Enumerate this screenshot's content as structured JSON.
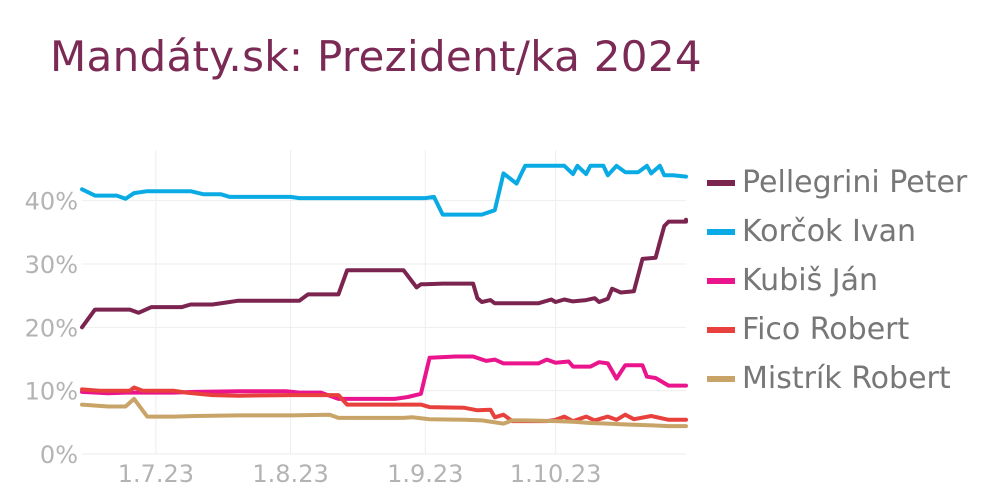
{
  "chart_data": {
    "type": "line",
    "title": "Mandáty.sk: Prezident/ka 2024",
    "xlabel": "",
    "ylabel": "",
    "x_range": [
      "2023-06-14",
      "2023-10-31"
    ],
    "ylim": [
      0,
      48
    ],
    "y_ticks": [
      0,
      10,
      20,
      30,
      40
    ],
    "y_tick_labels": [
      "0%",
      "10%",
      "20%",
      "30%",
      "40%"
    ],
    "x_ticks": [
      "2023-07-01",
      "2023-08-01",
      "2023-09-01",
      "2023-10-01"
    ],
    "x_tick_labels": [
      "1.7.23",
      "1.8.23",
      "1.9.23",
      "1.10.23"
    ],
    "grid": true,
    "legend": "right",
    "series": [
      {
        "name": "Pellegrini Peter",
        "color": "#7b2450",
        "points": [
          [
            "2023-06-14",
            20.0
          ],
          [
            "2023-06-17",
            22.8
          ],
          [
            "2023-06-25",
            22.8
          ],
          [
            "2023-06-27",
            22.3
          ],
          [
            "2023-06-30",
            23.2
          ],
          [
            "2023-07-07",
            23.2
          ],
          [
            "2023-07-09",
            23.6
          ],
          [
            "2023-07-14",
            23.6
          ],
          [
            "2023-07-17",
            23.9
          ],
          [
            "2023-07-20",
            24.2
          ],
          [
            "2023-07-28",
            24.2
          ],
          [
            "2023-08-03",
            24.2
          ],
          [
            "2023-08-05",
            25.2
          ],
          [
            "2023-08-12",
            25.2
          ],
          [
            "2023-08-14",
            29.0
          ],
          [
            "2023-08-24",
            29.0
          ],
          [
            "2023-08-27",
            29.0
          ],
          [
            "2023-08-30",
            26.3
          ],
          [
            "2023-08-31",
            26.8
          ],
          [
            "2023-09-01",
            26.8
          ],
          [
            "2023-09-05",
            26.9
          ],
          [
            "2023-09-12",
            26.9
          ],
          [
            "2023-09-13",
            24.6
          ],
          [
            "2023-09-14",
            24.0
          ],
          [
            "2023-09-16",
            24.3
          ],
          [
            "2023-09-17",
            23.8
          ],
          [
            "2023-09-22",
            23.8
          ],
          [
            "2023-09-27",
            23.8
          ],
          [
            "2023-09-30",
            24.4
          ],
          [
            "2023-10-01",
            24.0
          ],
          [
            "2023-10-03",
            24.4
          ],
          [
            "2023-10-05",
            24.1
          ],
          [
            "2023-10-08",
            24.3
          ],
          [
            "2023-10-10",
            24.6
          ],
          [
            "2023-10-11",
            24.0
          ],
          [
            "2023-10-13",
            24.5
          ],
          [
            "2023-10-14",
            26.1
          ],
          [
            "2023-10-16",
            25.5
          ],
          [
            "2023-10-19",
            25.7
          ],
          [
            "2023-10-21",
            30.8
          ],
          [
            "2023-10-24",
            31.0
          ],
          [
            "2023-10-25",
            33.5
          ],
          [
            "2023-10-26",
            36.0
          ],
          [
            "2023-10-27",
            36.7
          ],
          [
            "2023-10-31",
            36.7
          ],
          [
            "2023-10-31",
            36.7
          ],
          [
            "2023-10-31",
            37.0
          ]
        ]
      },
      {
        "name": "Korčok Ivan",
        "color": "#0aabe4",
        "points": [
          [
            "2023-06-14",
            41.8
          ],
          [
            "2023-06-17",
            40.8
          ],
          [
            "2023-06-22",
            40.8
          ],
          [
            "2023-06-24",
            40.3
          ],
          [
            "2023-06-26",
            41.2
          ],
          [
            "2023-06-29",
            41.5
          ],
          [
            "2023-07-09",
            41.5
          ],
          [
            "2023-07-12",
            41.0
          ],
          [
            "2023-07-16",
            41.0
          ],
          [
            "2023-07-18",
            40.6
          ],
          [
            "2023-07-28",
            40.6
          ],
          [
            "2023-08-01",
            40.6
          ],
          [
            "2023-08-03",
            40.4
          ],
          [
            "2023-08-15",
            40.4
          ],
          [
            "2023-08-25",
            40.4
          ],
          [
            "2023-09-01",
            40.4
          ],
          [
            "2023-09-03",
            40.6
          ],
          [
            "2023-09-05",
            37.8
          ],
          [
            "2023-09-08",
            37.8
          ],
          [
            "2023-09-14",
            37.8
          ],
          [
            "2023-09-17",
            38.5
          ],
          [
            "2023-09-19",
            44.3
          ],
          [
            "2023-09-22",
            42.7
          ],
          [
            "2023-09-24",
            45.5
          ],
          [
            "2023-09-28",
            45.5
          ],
          [
            "2023-10-03",
            45.5
          ],
          [
            "2023-10-05",
            44.2
          ],
          [
            "2023-10-06",
            45.5
          ],
          [
            "2023-10-08",
            44.2
          ],
          [
            "2023-10-09",
            45.5
          ],
          [
            "2023-10-12",
            45.5
          ],
          [
            "2023-10-13",
            44.0
          ],
          [
            "2023-10-15",
            45.5
          ],
          [
            "2023-10-17",
            44.5
          ],
          [
            "2023-10-20",
            44.5
          ],
          [
            "2023-10-22",
            45.5
          ],
          [
            "2023-10-23",
            44.3
          ],
          [
            "2023-10-25",
            45.5
          ],
          [
            "2023-10-26",
            44.0
          ],
          [
            "2023-10-28",
            44.0
          ],
          [
            "2023-10-31",
            43.8
          ]
        ]
      },
      {
        "name": "Kubiš Ján",
        "color": "#ea158c",
        "points": [
          [
            "2023-06-14",
            9.8
          ],
          [
            "2023-06-20",
            9.6
          ],
          [
            "2023-06-24",
            9.7
          ],
          [
            "2023-06-28",
            9.7
          ],
          [
            "2023-07-05",
            9.7
          ],
          [
            "2023-07-10",
            9.8
          ],
          [
            "2023-07-20",
            9.9
          ],
          [
            "2023-07-31",
            9.9
          ],
          [
            "2023-08-03",
            9.7
          ],
          [
            "2023-08-08",
            9.7
          ],
          [
            "2023-08-12",
            8.7
          ],
          [
            "2023-08-20",
            8.7
          ],
          [
            "2023-08-25",
            8.7
          ],
          [
            "2023-08-28",
            9.0
          ],
          [
            "2023-08-31",
            9.5
          ],
          [
            "2023-09-02",
            15.2
          ],
          [
            "2023-09-08",
            15.4
          ],
          [
            "2023-09-12",
            15.4
          ],
          [
            "2023-09-15",
            14.7
          ],
          [
            "2023-09-17",
            14.9
          ],
          [
            "2023-09-19",
            14.3
          ],
          [
            "2023-09-24",
            14.3
          ],
          [
            "2023-09-27",
            14.3
          ],
          [
            "2023-09-29",
            14.9
          ],
          [
            "2023-10-01",
            14.4
          ],
          [
            "2023-10-04",
            14.6
          ],
          [
            "2023-10-05",
            13.8
          ],
          [
            "2023-10-09",
            13.8
          ],
          [
            "2023-10-11",
            14.5
          ],
          [
            "2023-10-13",
            14.3
          ],
          [
            "2023-10-15",
            11.9
          ],
          [
            "2023-10-17",
            14.0
          ],
          [
            "2023-10-21",
            14.0
          ],
          [
            "2023-10-22",
            12.2
          ],
          [
            "2023-10-24",
            12.0
          ],
          [
            "2023-10-27",
            10.8
          ],
          [
            "2023-10-31",
            10.8
          ]
        ]
      },
      {
        "name": "Fico Robert",
        "color": "#e8403c",
        "points": [
          [
            "2023-06-14",
            10.2
          ],
          [
            "2023-06-18",
            10.0
          ],
          [
            "2023-06-25",
            10.0
          ],
          [
            "2023-06-26",
            10.5
          ],
          [
            "2023-06-28",
            10.0
          ],
          [
            "2023-07-05",
            10.0
          ],
          [
            "2023-07-08",
            9.7
          ],
          [
            "2023-07-14",
            9.3
          ],
          [
            "2023-07-20",
            9.2
          ],
          [
            "2023-08-01",
            9.3
          ],
          [
            "2023-08-12",
            9.3
          ],
          [
            "2023-08-14",
            7.8
          ],
          [
            "2023-08-25",
            7.8
          ],
          [
            "2023-08-31",
            7.8
          ],
          [
            "2023-09-02",
            7.4
          ],
          [
            "2023-09-10",
            7.3
          ],
          [
            "2023-09-13",
            6.9
          ],
          [
            "2023-09-16",
            7.0
          ],
          [
            "2023-09-17",
            5.8
          ],
          [
            "2023-09-19",
            6.2
          ],
          [
            "2023-09-21",
            5.2
          ],
          [
            "2023-09-29",
            5.2
          ],
          [
            "2023-10-01",
            5.4
          ],
          [
            "2023-10-03",
            5.9
          ],
          [
            "2023-10-05",
            5.2
          ],
          [
            "2023-10-08",
            5.9
          ],
          [
            "2023-10-10",
            5.3
          ],
          [
            "2023-10-13",
            5.9
          ],
          [
            "2023-10-15",
            5.4
          ],
          [
            "2023-10-17",
            6.2
          ],
          [
            "2023-10-19",
            5.5
          ],
          [
            "2023-10-23",
            6.0
          ],
          [
            "2023-10-27",
            5.4
          ],
          [
            "2023-10-31",
            5.4
          ]
        ]
      },
      {
        "name": "Mistrík Robert",
        "color": "#c8a468",
        "points": [
          [
            "2023-06-14",
            7.8
          ],
          [
            "2023-06-20",
            7.5
          ],
          [
            "2023-06-24",
            7.5
          ],
          [
            "2023-06-26",
            8.7
          ],
          [
            "2023-06-29",
            5.9
          ],
          [
            "2023-07-05",
            5.9
          ],
          [
            "2023-07-10",
            6.0
          ],
          [
            "2023-07-20",
            6.1
          ],
          [
            "2023-08-01",
            6.1
          ],
          [
            "2023-08-10",
            6.2
          ],
          [
            "2023-08-12",
            5.7
          ],
          [
            "2023-08-20",
            5.7
          ],
          [
            "2023-08-27",
            5.7
          ],
          [
            "2023-08-29",
            5.8
          ],
          [
            "2023-09-02",
            5.5
          ],
          [
            "2023-09-10",
            5.4
          ],
          [
            "2023-09-14",
            5.3
          ],
          [
            "2023-09-19",
            4.8
          ],
          [
            "2023-09-21",
            5.3
          ],
          [
            "2023-09-24",
            5.3
          ],
          [
            "2023-10-01",
            5.2
          ],
          [
            "2023-10-05",
            5.1
          ],
          [
            "2023-10-09",
            4.9
          ],
          [
            "2023-10-13",
            4.8
          ],
          [
            "2023-10-16",
            4.7
          ],
          [
            "2023-10-20",
            4.6
          ],
          [
            "2023-10-24",
            4.5
          ],
          [
            "2023-10-27",
            4.4
          ],
          [
            "2023-10-31",
            4.4
          ]
        ]
      }
    ]
  }
}
